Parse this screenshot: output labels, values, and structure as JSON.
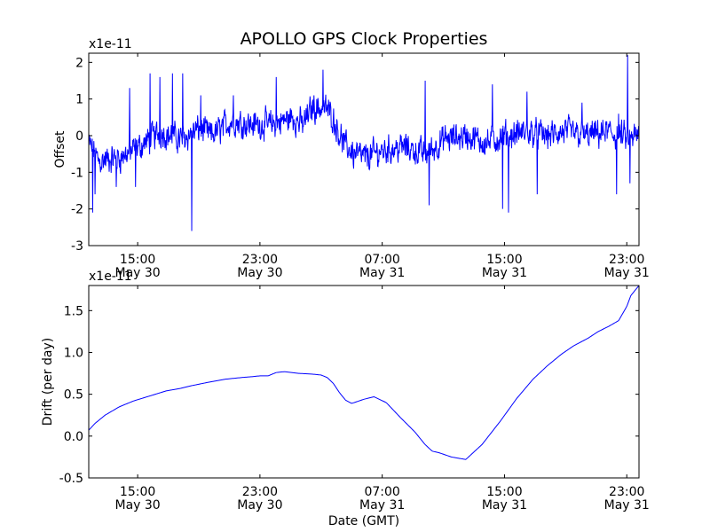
{
  "chart_data": [
    {
      "type": "line",
      "title": "APOLLO GPS Clock Properties",
      "ylabel": "Offset",
      "xlabel": "",
      "offset_text": "x1e-11",
      "ylim": [
        -3,
        2.25
      ],
      "yticks": [
        -3,
        -2,
        -1,
        0,
        1,
        2
      ],
      "ytick_labels": [
        "-3",
        "-2",
        "-1",
        "0",
        "1",
        "2"
      ],
      "xlim_hours": [
        0,
        27
      ],
      "xticks": [
        {
          "hour": 2.4,
          "time": "15:00",
          "date": "May 30"
        },
        {
          "hour": 8.4,
          "time": "23:00",
          "date": "May 30"
        },
        {
          "hour": 14.4,
          "time": "07:00",
          "date": "May 31"
        },
        {
          "hour": 20.4,
          "time": "15:00",
          "date": "May 31"
        },
        {
          "hour": 26.4,
          "time": "23:00",
          "date": "May 31"
        }
      ],
      "color": "#0000ff",
      "series": [
        {
          "name": "Offset",
          "baseline": {
            "hours": [
              0,
              0.5,
              1.5,
              2.5,
              3.5,
              4.5,
              5.5,
              6.0,
              7.0,
              8.0,
              9.0,
              10.0,
              10.5,
              11.0,
              11.8,
              12.6,
              13.5,
              14.5,
              15.5,
              16.5,
              17.5,
              18.5,
              19.5,
              20.5,
              21.5,
              22.5,
              23.5,
              24.5,
              25.5,
              26.5,
              27
            ],
            "values": [
              -0.2,
              -0.7,
              -0.6,
              -0.3,
              0.1,
              -0.1,
              0.2,
              0.0,
              0.4,
              0.3,
              0.3,
              0.5,
              0.3,
              0.8,
              0.7,
              -0.3,
              -0.6,
              -0.4,
              -0.3,
              -0.5,
              -0.1,
              0.0,
              -0.2,
              0.0,
              0.1,
              0.0,
              0.1,
              0.0,
              0.1,
              -0.1,
              0.0
            ]
          },
          "noise_amplitude": 0.45,
          "samples": 1400,
          "peaks": [
            {
              "hour": 0.2,
              "value": -2.1
            },
            {
              "hour": 0.3,
              "value": -1.6
            },
            {
              "hour": 1.35,
              "value": -1.4
            },
            {
              "hour": 2.0,
              "value": 1.3
            },
            {
              "hour": 2.3,
              "value": -1.4
            },
            {
              "hour": 3.0,
              "value": 1.7
            },
            {
              "hour": 3.5,
              "value": 1.6
            },
            {
              "hour": 4.1,
              "value": 1.7
            },
            {
              "hour": 4.6,
              "value": 1.7
            },
            {
              "hour": 5.05,
              "value": -2.6
            },
            {
              "hour": 5.5,
              "value": 1.1
            },
            {
              "hour": 7.1,
              "value": 1.1
            },
            {
              "hour": 9.2,
              "value": 1.6
            },
            {
              "hour": 11.5,
              "value": 1.8
            },
            {
              "hour": 13.0,
              "value": -0.9
            },
            {
              "hour": 16.5,
              "value": 1.5
            },
            {
              "hour": 16.7,
              "value": -1.9
            },
            {
              "hour": 19.8,
              "value": 1.4
            },
            {
              "hour": 20.3,
              "value": -2.0
            },
            {
              "hour": 20.6,
              "value": -2.1
            },
            {
              "hour": 21.5,
              "value": 1.2
            },
            {
              "hour": 22.0,
              "value": -1.6
            },
            {
              "hour": 24.2,
              "value": 0.9
            },
            {
              "hour": 25.9,
              "value": -1.6
            },
            {
              "hour": 26.0,
              "value": 0.6
            },
            {
              "hour": 26.45,
              "value": 2.2
            },
            {
              "hour": 26.55,
              "value": -1.3
            }
          ]
        }
      ]
    },
    {
      "type": "line",
      "title": "",
      "ylabel": "Drift (per day)",
      "xlabel": "Date (GMT)",
      "offset_text": "x1e-11",
      "ylim": [
        -0.5,
        1.8
      ],
      "yticks": [
        -0.5,
        0.0,
        0.5,
        1.0,
        1.5
      ],
      "ytick_labels": [
        "-0.5",
        "0.0",
        "0.5",
        "1.0",
        "1.5"
      ],
      "xlim_hours": [
        0,
        27
      ],
      "xticks": [
        {
          "hour": 2.4,
          "time": "15:00",
          "date": "May 30"
        },
        {
          "hour": 8.4,
          "time": "23:00",
          "date": "May 30"
        },
        {
          "hour": 14.4,
          "time": "07:00",
          "date": "May 31"
        },
        {
          "hour": 20.4,
          "time": "15:00",
          "date": "May 31"
        },
        {
          "hour": 26.4,
          "time": "23:00",
          "date": "May 31"
        }
      ],
      "color": "#0000ff",
      "series": [
        {
          "name": "Drift",
          "hours": [
            0,
            0.3,
            0.8,
            1.5,
            2.2,
            3.0,
            3.8,
            4.5,
            5.0,
            5.8,
            6.7,
            7.5,
            8.0,
            8.4,
            8.8,
            9.2,
            9.6,
            10.3,
            11.0,
            11.4,
            11.7,
            12.0,
            12.3,
            12.6,
            12.9,
            13.5,
            14.0,
            14.6,
            15.3,
            16.0,
            16.5,
            16.85,
            17.2,
            17.8,
            18.5,
            19.3,
            20.2,
            21.0,
            21.8,
            22.5,
            23.2,
            23.8,
            24.5,
            25.0,
            25.5,
            26.0,
            26.4,
            26.6,
            27.0
          ],
          "values": [
            0.07,
            0.15,
            0.25,
            0.35,
            0.42,
            0.48,
            0.54,
            0.57,
            0.6,
            0.64,
            0.68,
            0.7,
            0.71,
            0.72,
            0.72,
            0.76,
            0.77,
            0.75,
            0.74,
            0.73,
            0.7,
            0.63,
            0.52,
            0.43,
            0.39,
            0.44,
            0.47,
            0.4,
            0.22,
            0.05,
            -0.1,
            -0.18,
            -0.2,
            -0.25,
            -0.28,
            -0.1,
            0.18,
            0.45,
            0.68,
            0.84,
            0.98,
            1.08,
            1.17,
            1.25,
            1.31,
            1.38,
            1.55,
            1.68,
            1.8
          ]
        }
      ]
    }
  ]
}
